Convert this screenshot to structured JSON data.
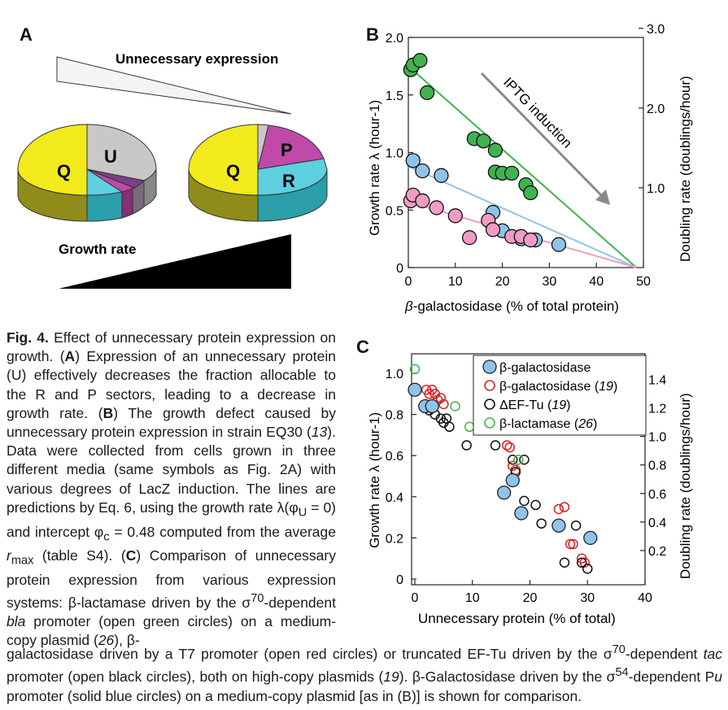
{
  "panels": {
    "a_letter": "A",
    "b_letter": "B",
    "c_letter": "C"
  },
  "panel_a": {
    "top_label": "Unnecessary expression",
    "bottom_label": "Growth rate",
    "pie_left": {
      "Q": "Q",
      "U": "U"
    },
    "pie_right": {
      "Q": "Q",
      "P": "P",
      "R": "R"
    },
    "colors": {
      "Q": "#f2ea1c",
      "U": "#c8c8c8",
      "R": "#5ecfdf",
      "P": "#bf4aa8"
    }
  },
  "panel_b": {
    "annotation": "IPTG induction",
    "xlabel_prefix": "β",
    "xlabel_rest": "-galactosidase (% of total protein)",
    "ylabel": "Growth rate λ (hour-1)",
    "y2label": "Doubling rate (doublings/hour)",
    "xticks": [
      "0",
      "10",
      "20",
      "30",
      "40",
      "50"
    ],
    "yticks": [
      "0",
      "0.5",
      "1.0",
      "1.5",
      "2.0"
    ],
    "y2ticks": [
      "1.0",
      "2.0",
      "3.0"
    ]
  },
  "panel_c": {
    "xlabel": "Unnecessary protein (% of total)",
    "ylabel": "Growth rate λ (hour-1)",
    "y2label": "Doubling rate (doublings/hour)",
    "xticks": [
      "0",
      "10",
      "20",
      "30",
      "40"
    ],
    "yticks": [
      "0",
      "0.2",
      "0.4",
      "0.6",
      "0.8",
      "1.0"
    ],
    "y2ticks": [
      "0.2",
      "0.4",
      "0.6",
      "0.8",
      "1.0",
      "1.2",
      "1.4"
    ],
    "legend": [
      {
        "label": "β-galactosidase",
        "ref": ""
      },
      {
        "label": "β-galactosidase (",
        "ref": "19",
        "close": ")"
      },
      {
        "label": "ΔEF-Tu (",
        "ref": "19",
        "close": ")"
      },
      {
        "label": "β-lactamase (",
        "ref": "26",
        "close": ")"
      }
    ]
  },
  "chart_data": [
    {
      "type": "scatter",
      "title": "",
      "xlabel": "β-galactosidase (% of total protein)",
      "ylabel": "Growth rate λ (hour-1)",
      "xlim": [
        0,
        50
      ],
      "ylim": [
        0,
        2.0
      ],
      "series": [
        {
          "color": "#3fb34f",
          "x": [
            0.5,
            1,
            2.5,
            4,
            14,
            16,
            18.5,
            18.5,
            20,
            22,
            25,
            26
          ],
          "y": [
            1.72,
            1.76,
            1.8,
            1.52,
            1.12,
            1.1,
            1.02,
            0.83,
            0.82,
            0.82,
            0.72,
            0.65
          ]
        },
        {
          "color": "#8fc3ea",
          "x": [
            1,
            3,
            7,
            18,
            20,
            24,
            27,
            32
          ],
          "y": [
            0.93,
            0.84,
            0.8,
            0.48,
            0.32,
            0.25,
            0.24,
            0.2
          ]
        },
        {
          "color": "#f09cc4",
          "x": [
            0.5,
            1,
            3,
            6,
            10,
            13,
            17,
            18,
            22,
            24,
            26
          ],
          "y": [
            0.58,
            0.63,
            0.58,
            0.52,
            0.45,
            0.26,
            0.41,
            0.33,
            0.27,
            0.27,
            0.24
          ]
        }
      ],
      "lines": [
        {
          "color": "#3fb34f",
          "from": [
            0,
            1.75
          ],
          "to": [
            48.5,
            0
          ]
        },
        {
          "color": "#8fc3ea",
          "from": [
            0,
            0.88
          ],
          "to": [
            48.5,
            0
          ]
        },
        {
          "color": "#f09cc4",
          "from": [
            0,
            0.57
          ],
          "to": [
            48.5,
            0
          ]
        }
      ]
    },
    {
      "type": "scatter",
      "title": "",
      "xlabel": "Unnecessary protein (% of total)",
      "ylabel": "Growth rate λ (hour-1)",
      "xlim": [
        0,
        40
      ],
      "ylim": [
        0,
        1.0
      ],
      "series": [
        {
          "fill": "#8fc3ea",
          "stroke": "#222",
          "filled": true,
          "x": [
            0,
            1.8,
            3,
            15.5,
            17,
            18.5,
            25,
            30.5
          ],
          "y": [
            0.92,
            0.84,
            0.84,
            0.42,
            0.48,
            0.32,
            0.26,
            0.2
          ]
        },
        {
          "stroke": "#e02020",
          "filled": false,
          "x": [
            2,
            2.5,
            3,
            3.5,
            4,
            4.5,
            5,
            16,
            16.5,
            17,
            17.5,
            25,
            26,
            27,
            27.5,
            29,
            29.5
          ],
          "y": [
            0.92,
            0.9,
            0.92,
            0.9,
            0.87,
            0.88,
            0.85,
            0.65,
            0.64,
            0.55,
            0.53,
            0.34,
            0.35,
            0.17,
            0.17,
            0.1,
            0.08
          ]
        },
        {
          "stroke": "#111",
          "filled": false,
          "x": [
            2.5,
            3.5,
            4.5,
            5,
            5.5,
            6,
            9,
            14,
            17,
            17.5,
            19,
            19,
            21,
            22,
            26,
            28,
            29,
            30
          ],
          "y": [
            0.82,
            0.8,
            0.78,
            0.76,
            0.78,
            0.74,
            0.65,
            0.65,
            0.58,
            0.52,
            0.58,
            0.38,
            0.36,
            0.27,
            0.08,
            0.26,
            0.08,
            0.05
          ]
        },
        {
          "stroke": "#45b545",
          "filled": false,
          "x": [
            0,
            7,
            9.5,
            18
          ],
          "y": [
            1.02,
            0.84,
            0.74,
            0.58
          ]
        }
      ]
    }
  ]
}
